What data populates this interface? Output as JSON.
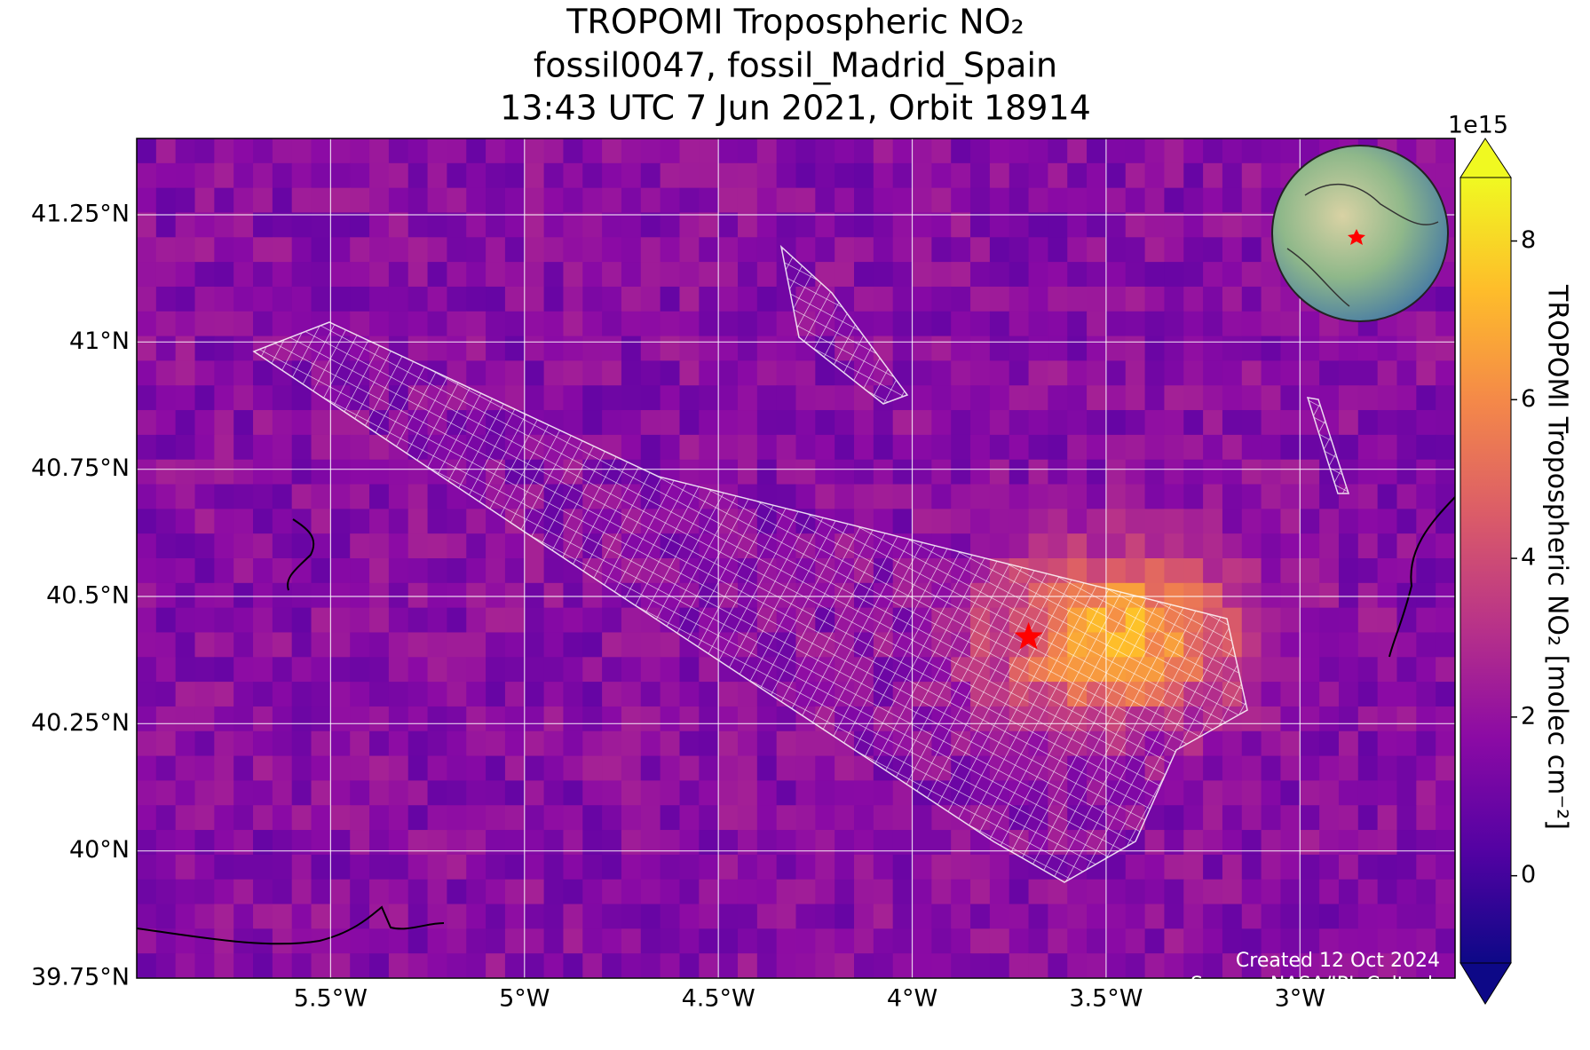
{
  "chart_data": {
    "type": "map",
    "title": [
      "TROPOMI Tropospheric NO₂",
      "fossil0047, fossil_Madrid_Spain",
      "13:43 UTC 7 Jun 2021, Orbit 18914"
    ],
    "xlim": [
      -6.0,
      -2.6
    ],
    "ylim": [
      39.75,
      41.4
    ],
    "xticks": [
      {
        "value": -5.5,
        "label": "5.5°W"
      },
      {
        "value": -5,
        "label": "5°W"
      },
      {
        "value": -4.5,
        "label": "4.5°W"
      },
      {
        "value": -4,
        "label": "4°W"
      },
      {
        "value": -3.5,
        "label": "3.5°W"
      },
      {
        "value": -3,
        "label": "3°W"
      }
    ],
    "yticks": [
      {
        "value": 39.75,
        "label": "39.75°N"
      },
      {
        "value": 40,
        "label": "40°N"
      },
      {
        "value": 40.25,
        "label": "40.25°N"
      },
      {
        "value": 40.5,
        "label": "40.5°N"
      },
      {
        "value": 40.75,
        "label": "40.75°N"
      },
      {
        "value": 41,
        "label": "41°N"
      },
      {
        "value": 41.25,
        "label": "41.25°N"
      }
    ],
    "grid": true,
    "target": {
      "lon": -3.7,
      "lat": 40.42,
      "color": "#ff0000"
    },
    "colorbar": {
      "label": "TROPOMI Tropospheric NO₂ [molec cm⁻²]",
      "offset_label": "1e15",
      "clim": [
        -1.1,
        8.8
      ],
      "ticks": [
        0,
        2,
        4,
        6,
        8
      ],
      "colormap": [
        "#0d0887",
        "#5302a3",
        "#8b0aa5",
        "#b83289",
        "#db5c68",
        "#f48849",
        "#febd2a",
        "#f0f921"
      ]
    },
    "annotations": [
      "Created 12 Oct 2024",
      "Source: NASA/JPL-Caltech"
    ]
  }
}
